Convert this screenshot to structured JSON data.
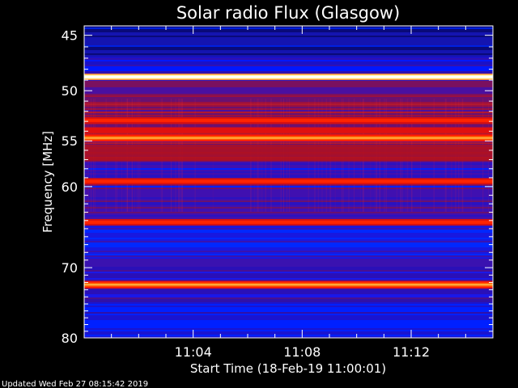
{
  "chart_data": {
    "type": "heatmap",
    "title": "Solar radio Flux (Glasgow)",
    "ylabel": "Frequency [MHz]",
    "xlabel": "Start Time (18-Feb-19 11:00:01)",
    "ylim": [
      80,
      44.2
    ],
    "yscale": "log",
    "xlim_minutes": [
      0,
      15
    ],
    "y_ticks": [
      45,
      50,
      55,
      60,
      70,
      80
    ],
    "x_ticks": [
      {
        "minutes": 4,
        "label": "11:04"
      },
      {
        "minutes": 8,
        "label": "11:08"
      },
      {
        "minutes": 12,
        "label": "11:12"
      }
    ],
    "colormap": [
      "#1a0fa0",
      "#0020ff",
      "#4010b0",
      "#a01040",
      "#ff2000",
      "#ff8000",
      "#ffff80",
      "#ffffff"
    ],
    "bands_mhz": [
      {
        "freq": 48.7,
        "level": "white"
      },
      {
        "freq": 52.9,
        "level": "red"
      },
      {
        "freq": 54.7,
        "level": "orange"
      },
      {
        "freq": 59.4,
        "level": "red"
      },
      {
        "freq": 64.2,
        "level": "red"
      },
      {
        "freq": 72.3,
        "level": "orange"
      }
    ],
    "footer": "Updated Wed Feb 27 08:15:42 2019"
  }
}
